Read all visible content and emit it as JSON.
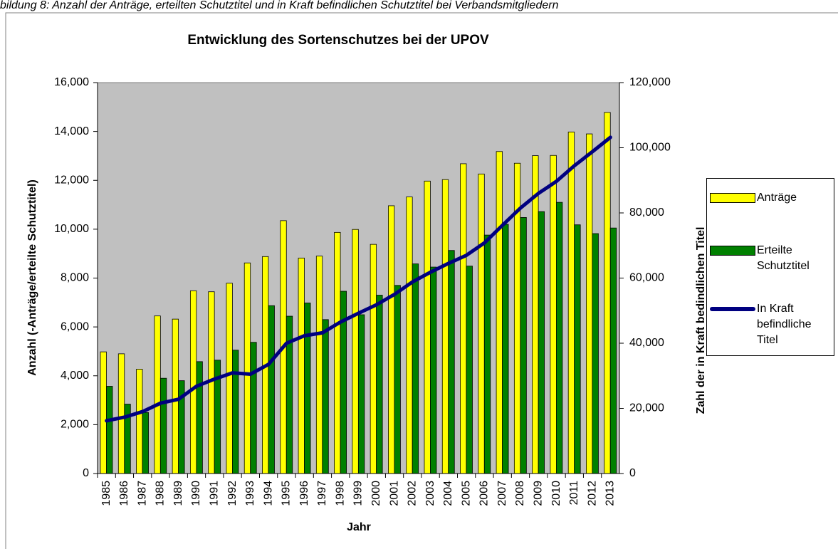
{
  "caption": "bildung 8: Anzahl der Anträge, erteilten Schutztitel und in Kraft befindlichen Schutztitel bei Verbandsmitgliedern",
  "chart_data": {
    "type": "bar",
    "title": "Entwicklung des Sortenschutzes bei der UPOV",
    "x_label": "Jahr",
    "y_label": "Anzahl (-Anträge/erteilte Schutztitel)",
    "y2_label": "Zahl der in Kraft bedindlichen Titel",
    "categories": [
      "1985",
      "1986",
      "1987",
      "1988",
      "1989",
      "1990",
      "1991",
      "1992",
      "1993",
      "1994",
      "1995",
      "1996",
      "1997",
      "1998",
      "1999",
      "2000",
      "2001",
      "2002",
      "2003",
      "2004",
      "2005",
      "2006",
      "2007",
      "2008",
      "2009",
      "2010",
      "2011",
      "2012",
      "2013"
    ],
    "series": [
      {
        "name": "Anträge",
        "type": "bar",
        "color": "#ffff00",
        "values": [
          4980,
          4900,
          4270,
          6450,
          6320,
          7480,
          7440,
          7790,
          8620,
          8880,
          10350,
          8820,
          8900,
          9870,
          9990,
          9380,
          10960,
          11320,
          11970,
          12030,
          12680,
          12260,
          13180,
          12700,
          13010,
          13020,
          13980,
          13900,
          14780
        ]
      },
      {
        "name": "Erteilte Schutztitel",
        "type": "bar",
        "color": "#008000",
        "values": [
          3570,
          2840,
          2500,
          3900,
          3800,
          4580,
          4640,
          5050,
          5370,
          6870,
          6440,
          6980,
          6300,
          7460,
          6500,
          7300,
          7700,
          8580,
          8450,
          9130,
          8490,
          9760,
          10200,
          10480,
          10720,
          11100,
          10180,
          9820,
          10050
        ]
      },
      {
        "name": "In Kraft befindliche Titel",
        "type": "line",
        "axis": "y2",
        "color": "#000080",
        "values": [
          16200,
          17300,
          19000,
          21600,
          22800,
          26800,
          29000,
          30900,
          30500,
          33500,
          40000,
          42300,
          43200,
          46500,
          49200,
          51800,
          55000,
          58800,
          61800,
          64500,
          67000,
          70800,
          76200,
          81500,
          86000,
          89700,
          94500,
          98800,
          103200
        ]
      }
    ],
    "ylim": [
      0,
      16000
    ],
    "yticks": [
      0,
      {
        "value": 2000,
        "label": "2,000"
      },
      {
        "value": 4000,
        "label": "4,000"
      },
      {
        "value": 6000,
        "label": "6,000"
      },
      {
        "value": 8000,
        "label": "8,000"
      },
      {
        "value": 10000,
        "label": "10,000"
      },
      {
        "value": 12000,
        "label": "12,000"
      },
      {
        "value": 14000,
        "label": "14,000"
      },
      {
        "value": 16000,
        "label": "16,000"
      }
    ],
    "y2lim": [
      0,
      120000
    ],
    "y2ticks": [
      0,
      {
        "value": 20000,
        "label": "20,000"
      },
      {
        "value": 40000,
        "label": "40,000"
      },
      {
        "value": 60000,
        "label": "60,000"
      },
      {
        "value": 80000,
        "label": "80,000"
      },
      {
        "value": 100000,
        "label": "100,000"
      },
      {
        "value": 120000,
        "label": "120,000"
      }
    ],
    "plot_background": "#c0c0c0",
    "legend": "right"
  }
}
